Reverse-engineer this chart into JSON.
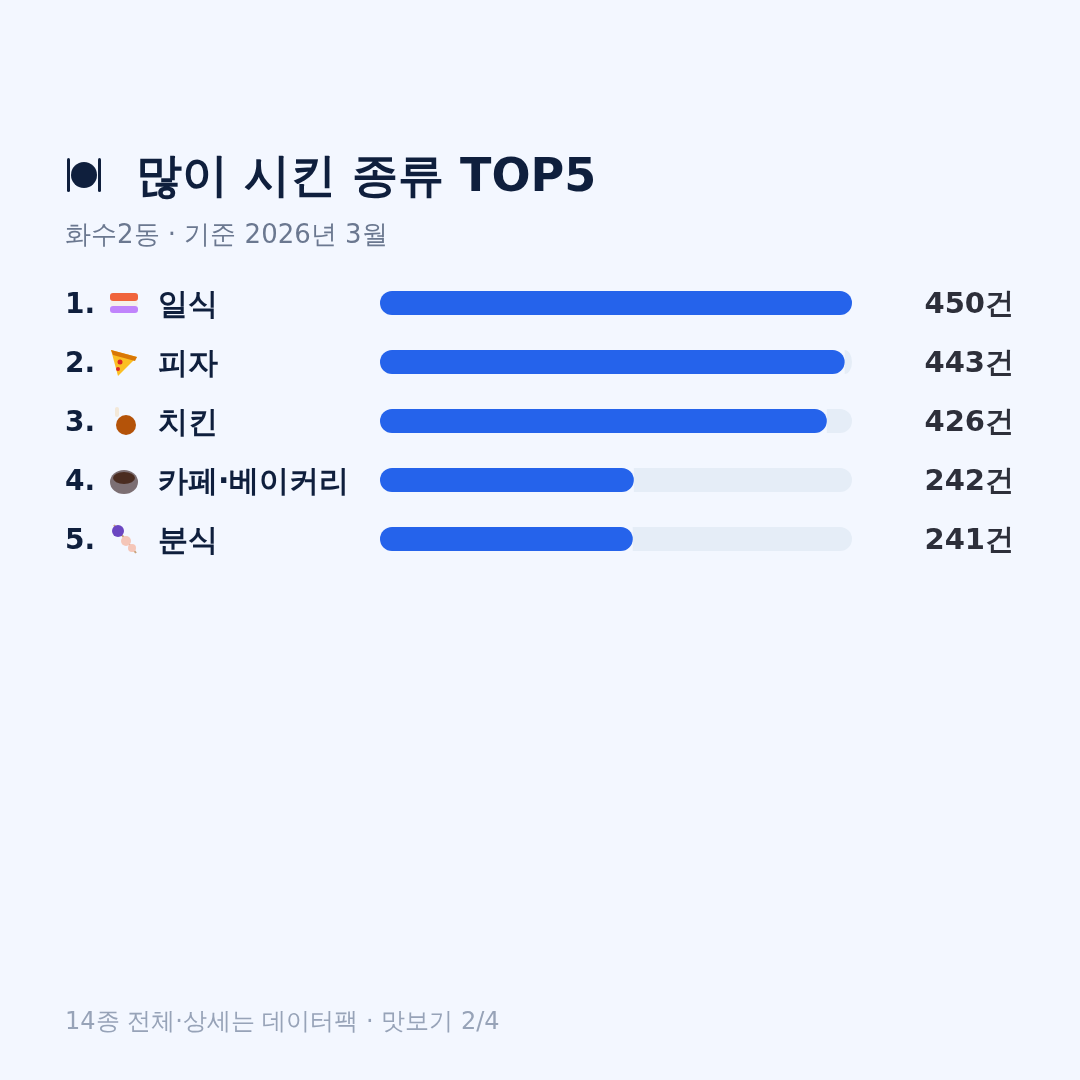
{
  "chart_data": {
    "type": "bar",
    "orientation": "horizontal",
    "title": "많이 시킨 종류 TOP5",
    "subtitle": "화수2동 · 기준 2026년 3월",
    "categories": [
      "1. 일식",
      "2. 피자",
      "3. 치킨",
      "4. 카페·베이커리",
      "5. 분식"
    ],
    "values": [
      450,
      443,
      426,
      242,
      241
    ],
    "value_labels": [
      "450건",
      "443건",
      "426건",
      "242건",
      "241건"
    ],
    "color": "#2563eb",
    "annotations": [
      "14종 전체·상세는 데이터팩 · 맛보기 2/4"
    ]
  }
}
